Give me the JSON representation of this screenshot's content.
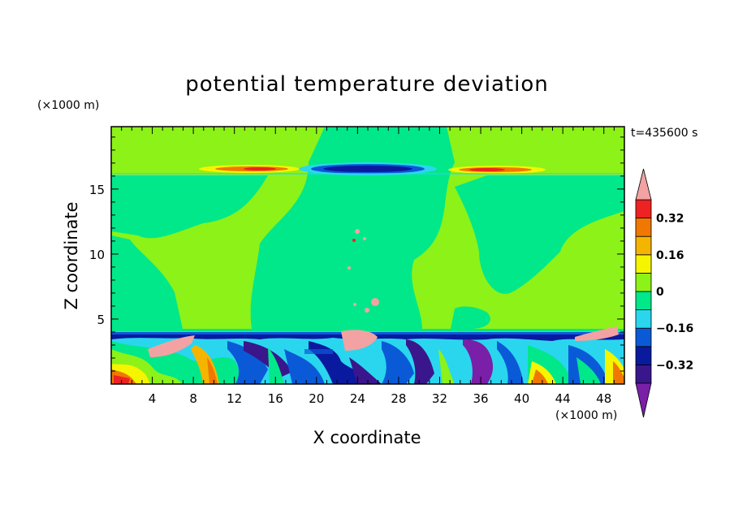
{
  "chart_data": {
    "type": "heatmap",
    "title": "potential temperature deviation",
    "xlabel": "X coordinate",
    "ylabel": "Z coordinate",
    "x_unit": "(×1000 m)",
    "y_unit": "(×1000 m)",
    "time_label": "t=435600 s",
    "xlim": [
      0,
      50
    ],
    "ylim": [
      0,
      19.8
    ],
    "xticks": [
      "4",
      "8",
      "12",
      "16",
      "20",
      "24",
      "28",
      "32",
      "36",
      "40",
      "44",
      "48"
    ],
    "yticks": [
      "5",
      "10",
      "15"
    ],
    "colorbar": {
      "levels": [
        -0.48,
        -0.4,
        -0.32,
        -0.24,
        -0.16,
        -0.08,
        0,
        0.08,
        0.16,
        0.24,
        0.32,
        0.4
      ],
      "labels": [
        "0.32",
        "0.16",
        "0",
        "−0.16",
        "−0.32"
      ],
      "label_values": [
        0.32,
        0.16,
        0,
        -0.16,
        -0.32
      ],
      "colors": [
        "#7a1fa8",
        "#3a168c",
        "#0a1a9e",
        "#0a5ad8",
        "#2ad6ee",
        "#00e88a",
        "#8cf218",
        "#f5f500",
        "#f5b400",
        "#f07800",
        "#ee2222",
        "#f2a2a2"
      ],
      "extend": "both"
    },
    "background_level": "green",
    "features": [
      {
        "name": "upper warm band left",
        "x": [
          9,
          17
        ],
        "z": 16.6,
        "value": 0.24
      },
      {
        "name": "upper cold lens",
        "x": [
          19,
          32
        ],
        "z": 16.5,
        "value": -0.32
      },
      {
        "name": "upper warm band right",
        "x": [
          33,
          42
        ],
        "z": 16.5,
        "value": 0.24
      },
      {
        "name": "inversion cold layer",
        "x": [
          0,
          50
        ],
        "z": 3.8,
        "value": -0.24
      },
      {
        "name": "boundary layer turbulence",
        "x": [
          0,
          50
        ],
        "z": [
          0,
          3.6
        ],
        "value": "mixed"
      }
    ]
  }
}
